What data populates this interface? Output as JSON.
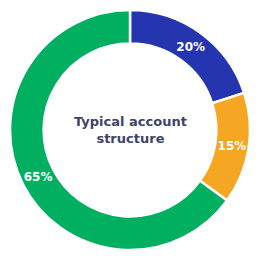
{
  "chart_data": {
    "type": "donut",
    "values": [
      20,
      15,
      65
    ],
    "value_labels": [
      "20%",
      "15%",
      "65%"
    ],
    "colors": [
      "#2535b0",
      "#f5a623",
      "#00b060"
    ],
    "data_labels": true,
    "annotations": [
      "Typical account",
      "structure"
    ]
  }
}
